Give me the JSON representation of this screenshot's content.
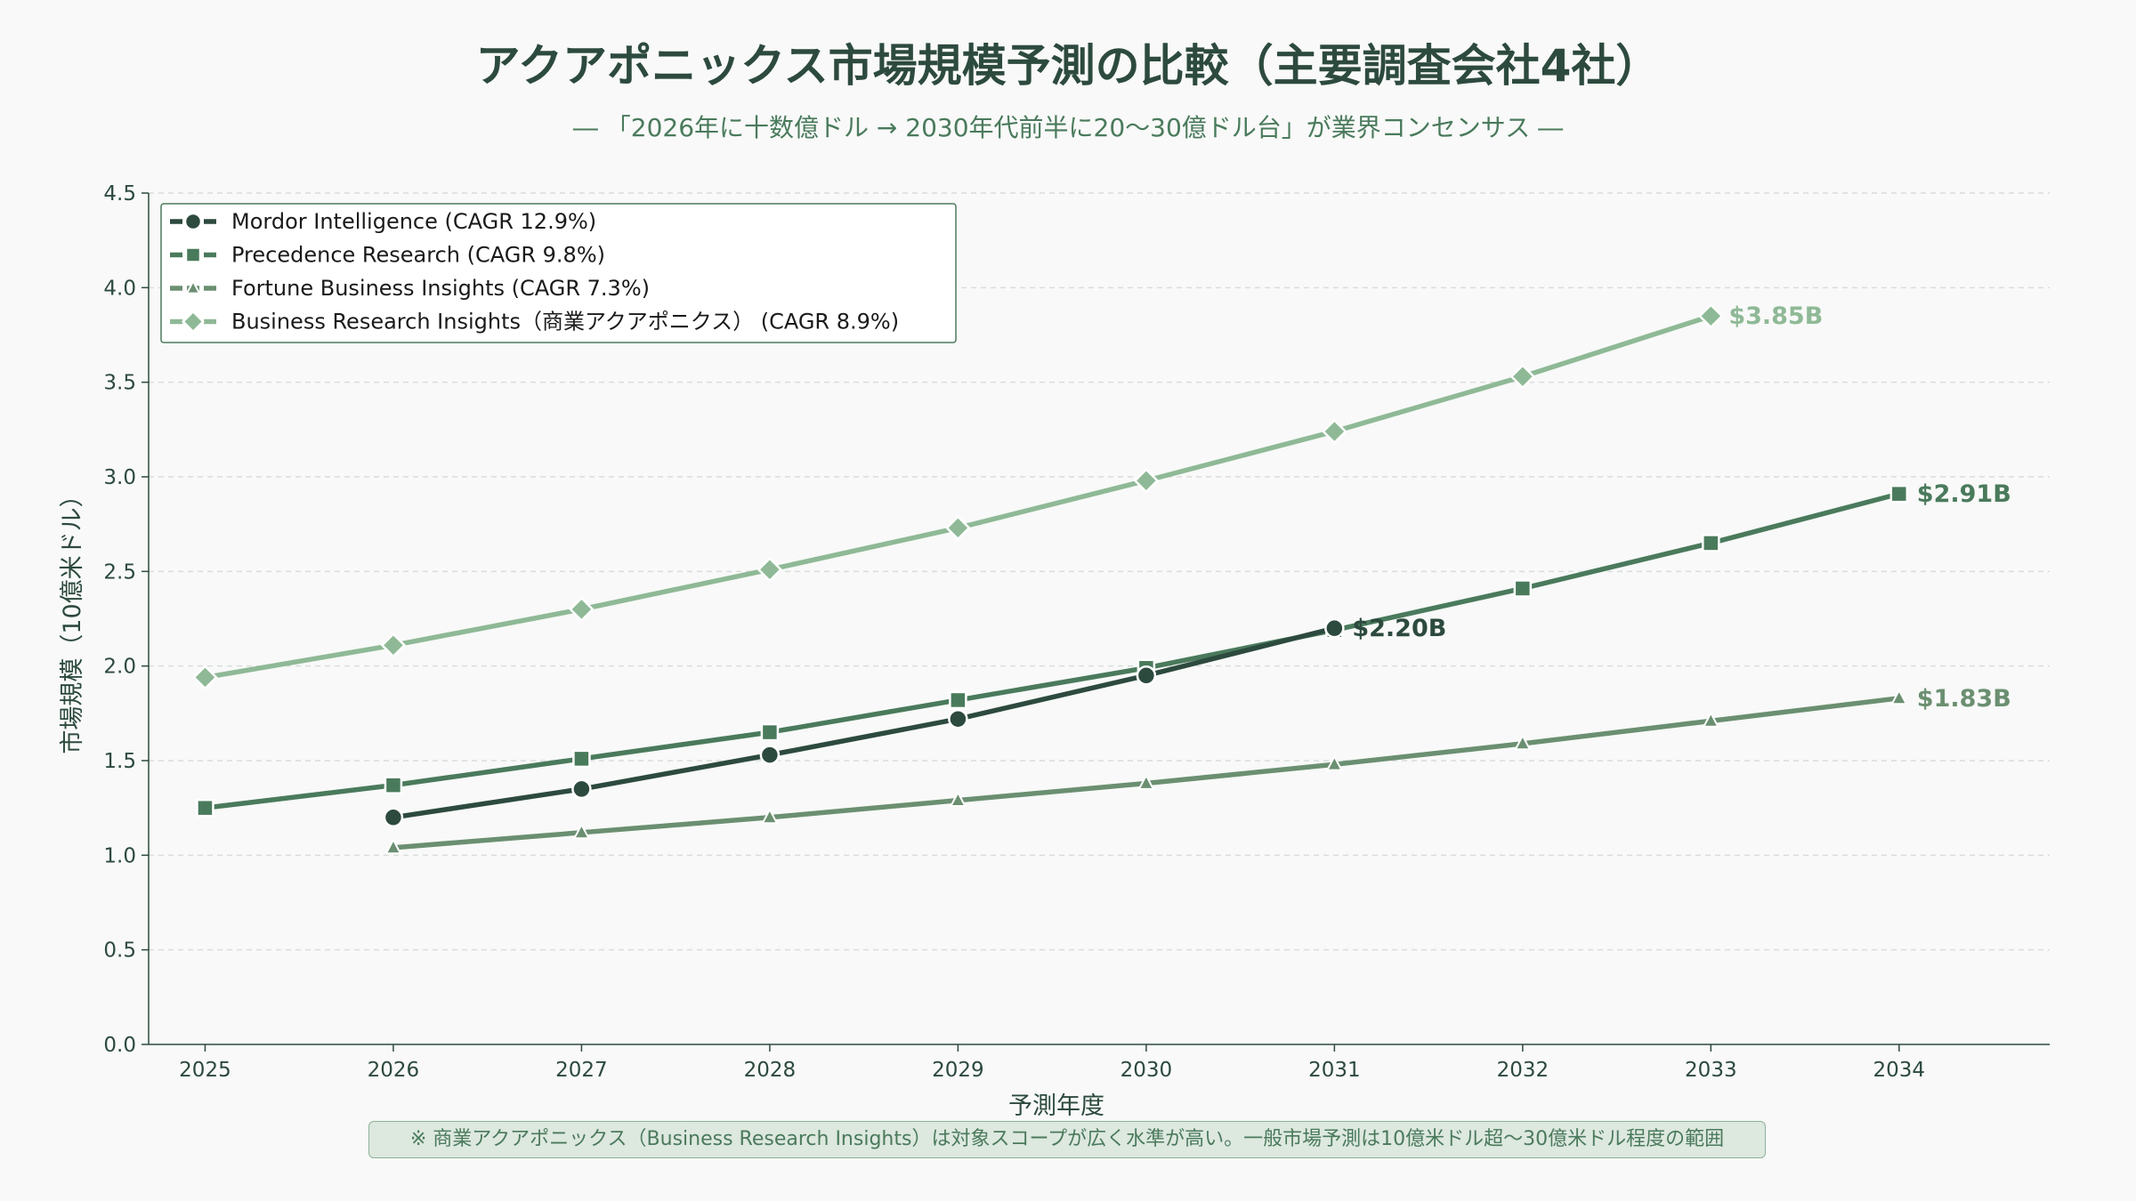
{
  "title": "アクアポニックス市場規模予測の比較（主要調査会社4社）",
  "subtitle": "― 「2026年に十数億ドル → 2030年代前半に20〜30億ドル台」が業界コンセンサス ―",
  "footnote": "※ 商業アクアポニックス（Business Research Insights）は対象スコープが広く水準が高い。一般市場予測は10億米ドル超〜30億米ドル程度の範囲",
  "chart_data": {
    "type": "line",
    "xlabel": "予測年度",
    "ylabel": "市場規模（10億米ドル）",
    "ylim": [
      0,
      4.5
    ],
    "xlim": [
      2024.7,
      2034.8
    ],
    "xticks": [
      "2025",
      "2026",
      "2027",
      "2028",
      "2029",
      "2030",
      "2031",
      "2032",
      "2033",
      "2034"
    ],
    "yticks": [
      "0.0",
      "0.5",
      "1.0",
      "1.5",
      "2.0",
      "2.5",
      "3.0",
      "3.5",
      "4.0",
      "4.5"
    ],
    "grid": "horizontal dashed",
    "legend_position": "top-left",
    "series": [
      {
        "name": "Mordor Intelligence  (CAGR 12.9%)",
        "color": "#2d4a3e",
        "marker": "circle",
        "x": [
          2026,
          2027,
          2028,
          2029,
          2030,
          2031
        ],
        "y": [
          1.2,
          1.35,
          1.53,
          1.72,
          1.95,
          2.2
        ],
        "end_label": "$2.20B"
      },
      {
        "name": "Precedence Research  (CAGR 9.8%)",
        "color": "#4a7a5c",
        "marker": "square",
        "x": [
          2025,
          2026,
          2027,
          2028,
          2029,
          2030,
          2031,
          2032,
          2033,
          2034
        ],
        "y": [
          1.25,
          1.37,
          1.51,
          1.65,
          1.82,
          1.99,
          2.19,
          2.41,
          2.65,
          2.91
        ],
        "end_label": "$2.91B"
      },
      {
        "name": "Fortune Business Insights  (CAGR 7.3%)",
        "color": "#6b8f71",
        "marker": "triangle",
        "x": [
          2026,
          2027,
          2028,
          2029,
          2030,
          2031,
          2032,
          2033,
          2034
        ],
        "y": [
          1.04,
          1.12,
          1.2,
          1.29,
          1.38,
          1.48,
          1.59,
          1.71,
          1.83
        ],
        "end_label": "$1.83B"
      },
      {
        "name": "Business Research Insights（商業アクアポニクス）  (CAGR 8.9%)",
        "color": "#8fb996",
        "marker": "diamond",
        "x": [
          2025,
          2026,
          2027,
          2028,
          2029,
          2030,
          2031,
          2032,
          2033
        ],
        "y": [
          1.94,
          2.11,
          2.3,
          2.51,
          2.73,
          2.98,
          3.24,
          3.53,
          3.85
        ],
        "end_label": "$3.85B"
      }
    ]
  }
}
